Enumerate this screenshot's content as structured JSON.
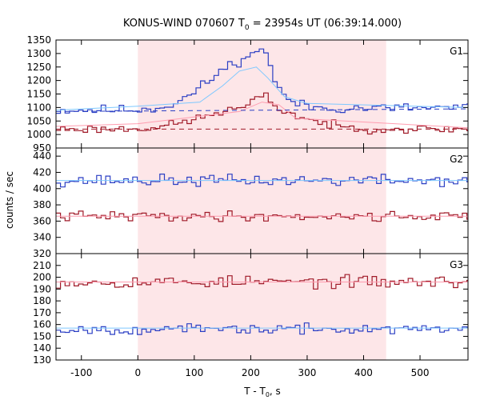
{
  "chart_data": {
    "type": "line",
    "title": {
      "prefix": "KONUS-WIND 070607 T",
      "sub": "0",
      "suffix": " = 23954s UT (06:39:14.000)"
    },
    "xlabel": {
      "prefix": "T - T",
      "sub": "0",
      "suffix": ", s"
    },
    "ylabel": "counts / sec",
    "xlim": [
      -145,
      585
    ],
    "xticks": [
      -100,
      0,
      100,
      200,
      300,
      400,
      500
    ],
    "highlight_interval": [
      0,
      440
    ],
    "colors": {
      "blue": "#2b3fc4",
      "red": "#a01a28",
      "light_blue": "#7ec8ff",
      "pink": "#ff9db0",
      "highlight": "#fde6e8"
    },
    "panels": [
      {
        "label": "G1",
        "ylim": [
          950,
          1350
        ],
        "yticks": [
          950,
          1000,
          1050,
          1100,
          1150,
          1200,
          1250,
          1300,
          1350
        ],
        "series": [
          {
            "color_key": "blue",
            "x_start": -145,
            "x_end": 585,
            "bin": 8,
            "base_left": 1090,
            "base_right": 1100,
            "noise": 18,
            "peaks": [
              [
                165,
                55,
                140
              ],
              [
                200,
                30,
                60
              ],
              [
                219,
                12,
                90
              ]
            ],
            "seed": 11
          },
          {
            "color_key": "red",
            "x_start": -145,
            "x_end": 585,
            "bin": 8,
            "base_left": 1020,
            "base_right": 1020,
            "noise": 15,
            "peaks": [
              [
                170,
                70,
                60
              ],
              [
                219,
                15,
                45
              ],
              [
                250,
                60,
                35
              ]
            ],
            "seed": 23
          }
        ],
        "fits": [
          {
            "color_key": "light_blue",
            "style": "solid",
            "points": [
              [
                -145,
                1090
              ],
              [
                0,
                1105
              ],
              [
                110,
                1120
              ],
              [
                150,
                1180
              ],
              [
                180,
                1235
              ],
              [
                210,
                1250
              ],
              [
                230,
                1210
              ],
              [
                260,
                1140
              ],
              [
                300,
                1115
              ],
              [
                585,
                1100
              ]
            ]
          },
          {
            "color_key": "pink",
            "style": "solid",
            "points": [
              [
                -145,
                1030
              ],
              [
                0,
                1040
              ],
              [
                120,
                1070
              ],
              [
                180,
                1085
              ],
              [
                220,
                1120
              ],
              [
                250,
                1110
              ],
              [
                280,
                1060
              ],
              [
                585,
                1025
              ]
            ]
          },
          {
            "color_key": "blue",
            "style": "dashed",
            "points": [
              [
                -145,
                1085
              ],
              [
                585,
                1095
              ]
            ]
          },
          {
            "color_key": "red",
            "style": "dashed",
            "points": [
              [
                -145,
                1020
              ],
              [
                585,
                1020
              ]
            ]
          }
        ]
      },
      {
        "label": "G2",
        "ylim": [
          320,
          450
        ],
        "yticks": [
          320,
          340,
          360,
          380,
          400,
          420,
          440
        ],
        "series": [
          {
            "color_key": "blue",
            "x_start": -145,
            "x_end": 585,
            "bin": 8,
            "base_left": 410,
            "base_right": 410,
            "noise": 7,
            "peaks": [],
            "seed": 37
          },
          {
            "color_key": "red",
            "x_start": -145,
            "x_end": 585,
            "bin": 8,
            "base_left": 366,
            "base_right": 366,
            "noise": 6,
            "peaks": [],
            "seed": 41
          }
        ],
        "fits": [
          {
            "color_key": "light_blue",
            "style": "solid",
            "points": [
              [
                -145,
                410
              ],
              [
                585,
                410
              ]
            ]
          },
          {
            "color_key": "pink",
            "style": "solid",
            "points": [
              [
                -145,
                366
              ],
              [
                585,
                366
              ]
            ]
          }
        ]
      },
      {
        "label": "G3",
        "ylim": [
          130,
          220
        ],
        "yticks": [
          130,
          140,
          150,
          160,
          170,
          180,
          190,
          200,
          210
        ],
        "series": [
          {
            "color_key": "red",
            "x_start": -145,
            "x_end": 585,
            "bin": 8,
            "base_left": 196,
            "base_right": 196,
            "noise": 5,
            "peaks": [],
            "seed": 53
          },
          {
            "color_key": "blue",
            "x_start": -145,
            "x_end": 585,
            "bin": 8,
            "base_left": 156,
            "base_right": 156,
            "noise": 4,
            "peaks": [],
            "seed": 67
          }
        ],
        "fits": [
          {
            "color_key": "pink",
            "style": "solid",
            "points": [
              [
                -145,
                196
              ],
              [
                585,
                196
              ]
            ]
          },
          {
            "color_key": "light_blue",
            "style": "solid",
            "points": [
              [
                -145,
                157
              ],
              [
                585,
                157
              ]
            ]
          }
        ]
      }
    ]
  }
}
